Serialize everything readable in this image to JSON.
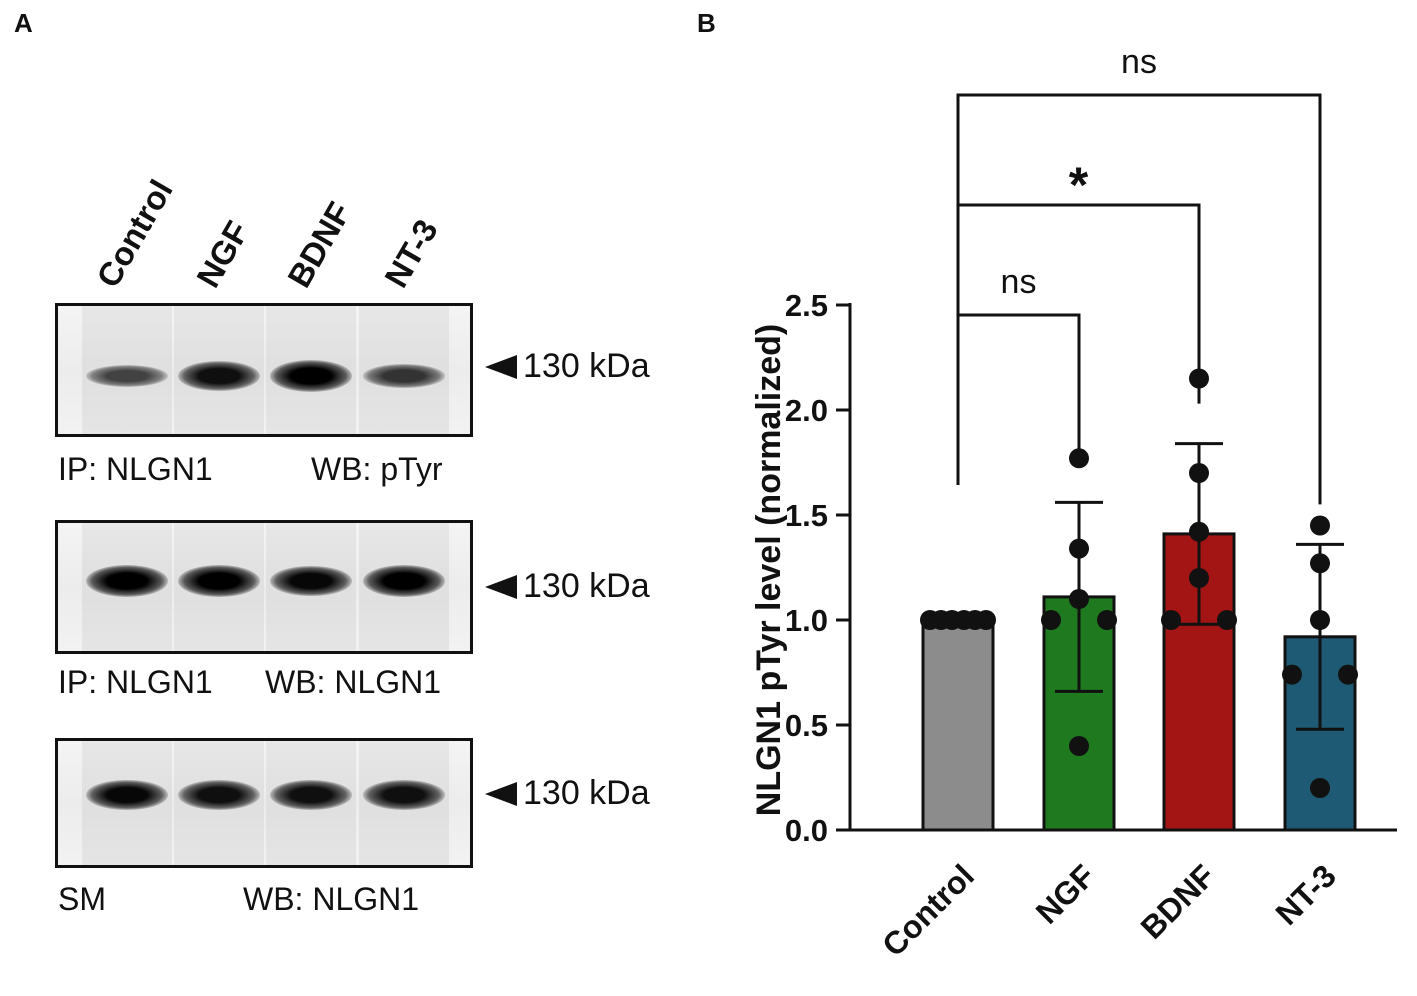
{
  "panels": {
    "a": "A",
    "b": "B"
  },
  "lanes": [
    "Control",
    "NGF",
    "BDNF",
    "NT-3"
  ],
  "blots": [
    {
      "marker": "130 kDa",
      "caption_left": "IP: NLGN1",
      "caption_right": "WB: pTyr",
      "band_intensity": [
        0.55,
        0.9,
        1.0,
        0.65
      ]
    },
    {
      "marker": "130 kDa",
      "caption_left": "IP: NLGN1",
      "caption_right": "WB: NLGN1",
      "band_intensity": [
        1.0,
        1.0,
        0.95,
        1.0
      ]
    },
    {
      "marker": "130 kDa",
      "caption_left": "SM",
      "caption_right": "WB: NLGN1",
      "band_intensity": [
        0.95,
        0.9,
        0.9,
        0.9
      ]
    }
  ],
  "chart_data": {
    "type": "bar",
    "categories": [
      "Control",
      "NGF",
      "BDNF",
      "NT-3"
    ],
    "values": [
      1.0,
      1.11,
      1.41,
      0.92
    ],
    "errors": [
      0.0,
      0.45,
      0.43,
      0.44
    ],
    "points": [
      [
        1.0,
        1.0,
        1.0,
        1.0,
        1.0,
        1.0
      ],
      [
        1.77,
        1.34,
        1.1,
        1.0,
        1.0,
        0.4
      ],
      [
        2.15,
        1.7,
        1.42,
        1.2,
        1.0,
        1.0
      ],
      [
        1.45,
        1.27,
        1.0,
        0.74,
        0.74,
        0.2
      ]
    ],
    "colors": [
      "#8c8c8c",
      "#1f7a1f",
      "#a31515",
      "#1e5a73"
    ],
    "ylabel": "NLGN1 pTyr level (normalized)",
    "ylim": [
      0,
      2.5
    ],
    "yticks": [
      "0.0",
      "0.5",
      "1.0",
      "1.5",
      "2.0",
      "2.5"
    ],
    "significance": [
      {
        "from": "Control",
        "to": "NGF",
        "label": "ns"
      },
      {
        "from": "Control",
        "to": "BDNF",
        "label": "*"
      },
      {
        "from": "Control",
        "to": "NT-3",
        "label": "ns"
      }
    ]
  }
}
